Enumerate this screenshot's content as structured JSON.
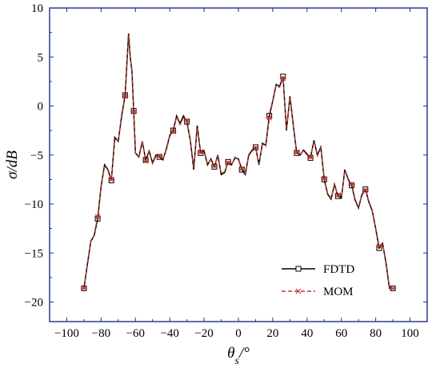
{
  "chart_data": {
    "type": "line",
    "title": "",
    "xlabel": "θs/°",
    "ylabel": "σ/dB",
    "xlim": [
      -110,
      110
    ],
    "ylim": [
      -22,
      10
    ],
    "xticks": [
      -100,
      -80,
      -60,
      -40,
      -20,
      0,
      20,
      40,
      60,
      80,
      100
    ],
    "yticks": [
      -20,
      -15,
      -10,
      -5,
      0,
      5,
      10
    ],
    "xtick_labels": [
      "−100",
      "−80",
      "−60",
      "−40",
      "−20",
      "0",
      "20",
      "40",
      "60",
      "80",
      "100"
    ],
    "ytick_labels": [
      "−20",
      "−15",
      "−10",
      "−5",
      "0",
      "5",
      "10"
    ],
    "grid": false,
    "legend_position": "bottom-right",
    "x": [
      -90,
      -88,
      -86,
      -84,
      -82,
      -80,
      -78,
      -76,
      -74,
      -72,
      -70,
      -68,
      -66,
      -64,
      -63,
      -62,
      -61,
      -60,
      -58,
      -56,
      -54,
      -52,
      -50,
      -48,
      -46,
      -44,
      -42,
      -40,
      -38,
      -36,
      -34,
      -32,
      -30,
      -28,
      -26,
      -24,
      -22,
      -20,
      -18,
      -16,
      -14,
      -12,
      -10,
      -8,
      -6,
      -4,
      -2,
      0,
      2,
      4,
      6,
      8,
      10,
      12,
      14,
      16,
      18,
      20,
      22,
      24,
      26,
      28,
      30,
      32,
      34,
      36,
      38,
      40,
      42,
      44,
      46,
      48,
      50,
      52,
      54,
      56,
      58,
      60,
      62,
      64,
      66,
      68,
      70,
      72,
      74,
      76,
      78,
      80,
      82,
      84,
      86,
      88,
      90
    ],
    "series": [
      {
        "name": "FDTD",
        "color": "#000000",
        "marker": "square",
        "values": [
          -18.6,
          -16.2,
          -13.8,
          -13.2,
          -11.5,
          -8.2,
          -6.0,
          -6.5,
          -7.6,
          -3.2,
          -3.6,
          -1.0,
          1.1,
          7.4,
          5.0,
          3.5,
          -0.5,
          -4.8,
          -5.2,
          -3.6,
          -5.5,
          -4.6,
          -5.8,
          -5.0,
          -5.2,
          -5.5,
          -4.4,
          -3.0,
          -2.5,
          -1.0,
          -1.8,
          -1.0,
          -1.6,
          -3.5,
          -6.5,
          -2.0,
          -4.8,
          -4.6,
          -6.0,
          -5.4,
          -6.2,
          -5.0,
          -7.0,
          -6.8,
          -5.7,
          -6.0,
          -5.3,
          -5.4,
          -6.5,
          -7.0,
          -5.0,
          -4.5,
          -4.2,
          -6.0,
          -3.8,
          -4.0,
          -1.0,
          0.5,
          2.2,
          2.0,
          3.0,
          -2.5,
          1.0,
          -2.0,
          -4.8,
          -5.0,
          -4.5,
          -4.9,
          -5.3,
          -3.5,
          -5.0,
          -4.2,
          -7.5,
          -9.0,
          -9.5,
          -8.0,
          -9.2,
          -9.4,
          -6.5,
          -7.5,
          -8.1,
          -9.6,
          -10.4,
          -9.0,
          -8.5,
          -9.8,
          -10.7,
          -12.5,
          -14.5,
          -14.0,
          -16.0,
          -18.6,
          -18.6
        ]
      },
      {
        "name": "MOM",
        "color": "#c0392b",
        "marker": "x",
        "values": [
          -18.6,
          -16.0,
          -13.9,
          -13.1,
          -11.3,
          -8.1,
          -6.2,
          -6.4,
          -7.5,
          -3.4,
          -3.5,
          -1.2,
          1.0,
          7.2,
          4.8,
          3.6,
          -0.6,
          -4.9,
          -5.1,
          -3.5,
          -5.6,
          -4.7,
          -5.9,
          -5.1,
          -5.1,
          -5.4,
          -4.5,
          -3.1,
          -2.6,
          -1.1,
          -1.9,
          -1.2,
          -1.5,
          -3.4,
          -6.3,
          -2.2,
          -4.7,
          -4.5,
          -5.9,
          -5.5,
          -6.1,
          -5.1,
          -6.9,
          -6.7,
          -5.8,
          -6.1,
          -5.2,
          -5.5,
          -6.4,
          -6.9,
          -5.1,
          -4.6,
          -4.3,
          -5.9,
          -3.9,
          -4.1,
          -1.2,
          0.4,
          2.1,
          1.9,
          2.8,
          -2.4,
          0.9,
          -2.1,
          -4.7,
          -4.9,
          -4.6,
          -5.0,
          -5.2,
          -3.6,
          -5.1,
          -4.3,
          -7.4,
          -8.9,
          -9.4,
          -8.1,
          -9.1,
          -9.3,
          -6.6,
          -7.4,
          -8.0,
          -9.5,
          -10.3,
          -9.1,
          -8.6,
          -9.7,
          -10.6,
          -12.4,
          -14.3,
          -14.1,
          -15.8,
          -18.5,
          -18.6
        ]
      }
    ]
  }
}
